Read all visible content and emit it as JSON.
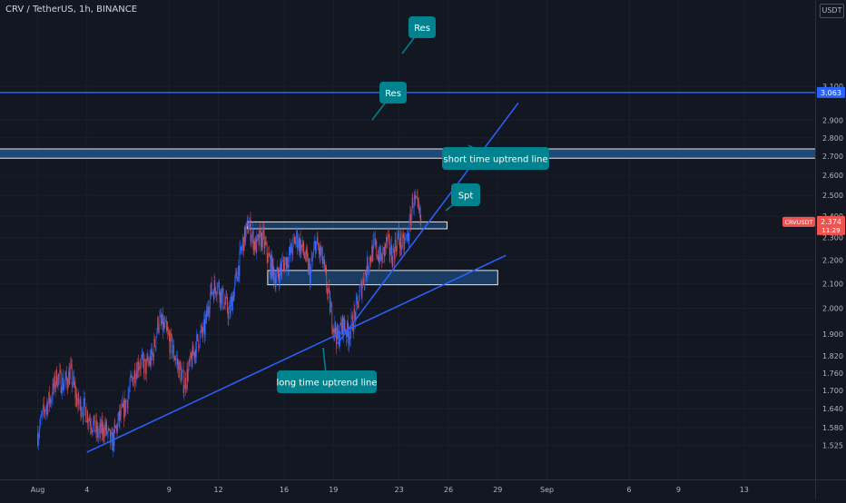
{
  "header": {
    "title": "CRV / TetherUS, 1h, BINANCE"
  },
  "price_scale": {
    "currency": "USDT",
    "symbol_tag": "CRVUSDT",
    "last_price_label": "2.374",
    "countdown": "11:29",
    "res_line_label": "3.063"
  },
  "colors": {
    "background": "#131722",
    "up_candle": "#2962ff",
    "down_candle": "#ef5350",
    "trendline": "#2962ff",
    "zone_fill": "#1e4a7a",
    "callout": "#00838f",
    "price_tag": "#ef5350",
    "res_tag": "#2962ff"
  },
  "chart_data": {
    "type": "candlestick",
    "title": "CRV / TetherUS, 1h, BINANCE",
    "y_scale": "log",
    "ylim": [
      1.5,
      3.12
    ],
    "xlim": [
      "2021-08-01",
      "2021-09-15"
    ],
    "y_ticks": [
      {
        "value": 3.1,
        "label": "3.100"
      },
      {
        "value": 2.9,
        "label": "2.900"
      },
      {
        "value": 2.8,
        "label": "2.800"
      },
      {
        "value": 2.7,
        "label": "2.700"
      },
      {
        "value": 2.6,
        "label": "2.600"
      },
      {
        "value": 2.5,
        "label": "2.500"
      },
      {
        "value": 2.4,
        "label": "2.400"
      },
      {
        "value": 2.3,
        "label": "2.300"
      },
      {
        "value": 2.2,
        "label": "2.200"
      },
      {
        "value": 2.1,
        "label": "2.100"
      },
      {
        "value": 2.0,
        "label": "2.000"
      },
      {
        "value": 1.9,
        "label": "1.900"
      },
      {
        "value": 1.82,
        "label": "1.820"
      },
      {
        "value": 1.76,
        "label": "1.760"
      },
      {
        "value": 1.7,
        "label": "1.700"
      },
      {
        "value": 1.64,
        "label": "1.640"
      },
      {
        "value": 1.58,
        "label": "1.580"
      },
      {
        "value": 1.525,
        "label": "1.525"
      }
    ],
    "x_ticks": [
      {
        "date": "2021-08-01",
        "label": "Aug"
      },
      {
        "date": "2021-08-04",
        "label": "4"
      },
      {
        "date": "2021-08-09",
        "label": "9"
      },
      {
        "date": "2021-08-12",
        "label": "12"
      },
      {
        "date": "2021-08-16",
        "label": "16"
      },
      {
        "date": "2021-08-19",
        "label": "19"
      },
      {
        "date": "2021-08-23",
        "label": "23"
      },
      {
        "date": "2021-08-26",
        "label": "26"
      },
      {
        "date": "2021-08-29",
        "label": "29"
      },
      {
        "date": "2021-09-01",
        "label": "Sep"
      },
      {
        "date": "2021-09-06",
        "label": "6"
      },
      {
        "date": "2021-09-09",
        "label": "9"
      },
      {
        "date": "2021-09-13",
        "label": "13"
      }
    ],
    "price_path": [
      [
        "2021-08-01T00:00",
        1.56
      ],
      [
        "2021-08-01T10:00",
        1.64
      ],
      [
        "2021-08-01T20:00",
        1.68
      ],
      [
        "2021-08-02T04:00",
        1.75
      ],
      [
        "2021-08-02T14:00",
        1.72
      ],
      [
        "2021-08-03T00:00",
        1.76
      ],
      [
        "2021-08-03T10:00",
        1.66
      ],
      [
        "2021-08-03T20:00",
        1.64
      ],
      [
        "2021-08-04T06:00",
        1.6
      ],
      [
        "2021-08-04T16:00",
        1.56
      ],
      [
        "2021-08-05T02:00",
        1.58
      ],
      [
        "2021-08-05T12:00",
        1.53
      ],
      [
        "2021-08-05T22:00",
        1.6
      ],
      [
        "2021-08-06T08:00",
        1.65
      ],
      [
        "2021-08-06T18:00",
        1.74
      ],
      [
        "2021-08-07T04:00",
        1.8
      ],
      [
        "2021-08-07T14:00",
        1.78
      ],
      [
        "2021-08-08T00:00",
        1.82
      ],
      [
        "2021-08-08T08:00",
        1.95
      ],
      [
        "2021-08-08T18:00",
        1.92
      ],
      [
        "2021-08-09T04:00",
        1.85
      ],
      [
        "2021-08-09T14:00",
        1.78
      ],
      [
        "2021-08-09T22:00",
        1.72
      ],
      [
        "2021-08-10T08:00",
        1.8
      ],
      [
        "2021-08-10T18:00",
        1.88
      ],
      [
        "2021-08-11T04:00",
        1.92
      ],
      [
        "2021-08-11T12:00",
        2.06
      ],
      [
        "2021-08-11T22:00",
        2.1
      ],
      [
        "2021-08-12T06:00",
        2.04
      ],
      [
        "2021-08-12T16:00",
        1.98
      ],
      [
        "2021-08-13T02:00",
        2.12
      ],
      [
        "2021-08-13T12:00",
        2.28
      ],
      [
        "2021-08-13T20:00",
        2.36
      ],
      [
        "2021-08-14T06:00",
        2.26
      ],
      [
        "2021-08-14T16:00",
        2.3
      ],
      [
        "2021-08-15T02:00",
        2.2
      ],
      [
        "2021-08-15T12:00",
        2.12
      ],
      [
        "2021-08-15T22:00",
        2.18
      ],
      [
        "2021-08-16T08:00",
        2.22
      ],
      [
        "2021-08-16T18:00",
        2.3
      ],
      [
        "2021-08-17T04:00",
        2.24
      ],
      [
        "2021-08-17T14:00",
        2.14
      ],
      [
        "2021-08-17T22:00",
        2.28
      ],
      [
        "2021-08-18T08:00",
        2.2
      ],
      [
        "2021-08-18T16:00",
        2.06
      ],
      [
        "2021-08-18T22:00",
        1.96
      ],
      [
        "2021-08-19T06:00",
        1.88
      ],
      [
        "2021-08-19T14:00",
        1.94
      ],
      [
        "2021-08-19T22:00",
        1.9
      ],
      [
        "2021-08-20T08:00",
        1.98
      ],
      [
        "2021-08-20T18:00",
        2.1
      ],
      [
        "2021-08-21T04:00",
        2.2
      ],
      [
        "2021-08-21T12:00",
        2.26
      ],
      [
        "2021-08-21T22:00",
        2.2
      ],
      [
        "2021-08-22T06:00",
        2.28
      ],
      [
        "2021-08-22T14:00",
        2.22
      ],
      [
        "2021-08-22T22:00",
        2.3
      ],
      [
        "2021-08-23T06:00",
        2.26
      ],
      [
        "2021-08-23T14:00",
        2.32
      ],
      [
        "2021-08-23T20:00",
        2.48
      ],
      [
        "2021-08-24T02:00",
        2.44
      ],
      [
        "2021-08-24T08:00",
        2.374
      ]
    ],
    "overlays": [
      {
        "type": "hline",
        "value": 3.063
      },
      {
        "type": "zone",
        "from": 2.69,
        "to": 2.74
      },
      {
        "type": "box",
        "x_from": "2021-08-13T18:00",
        "x_to": "2021-08-25T22:00",
        "from": 2.34,
        "to": 2.372
      },
      {
        "type": "box",
        "x_from": "2021-08-15T00:00",
        "x_to": "2021-08-29T00:00",
        "from": 2.095,
        "to": 2.155
      },
      {
        "type": "trendline",
        "x1": "2021-08-04T00:00",
        "y1": 1.505,
        "x2": "2021-08-29T12:00",
        "y2": 2.22
      },
      {
        "type": "trendline",
        "x1": "2021-08-19T06:00",
        "y1": 1.865,
        "x2": "2021-08-30T06:00",
        "y2": 3.0
      }
    ],
    "annotations": [
      {
        "text": "Res",
        "target": "3.063 line"
      },
      {
        "text": "Res",
        "target": "2.69-2.74 zone"
      },
      {
        "text": "short time uptrend line"
      },
      {
        "text": "Spt"
      },
      {
        "text": "long time uptrend line"
      }
    ]
  }
}
